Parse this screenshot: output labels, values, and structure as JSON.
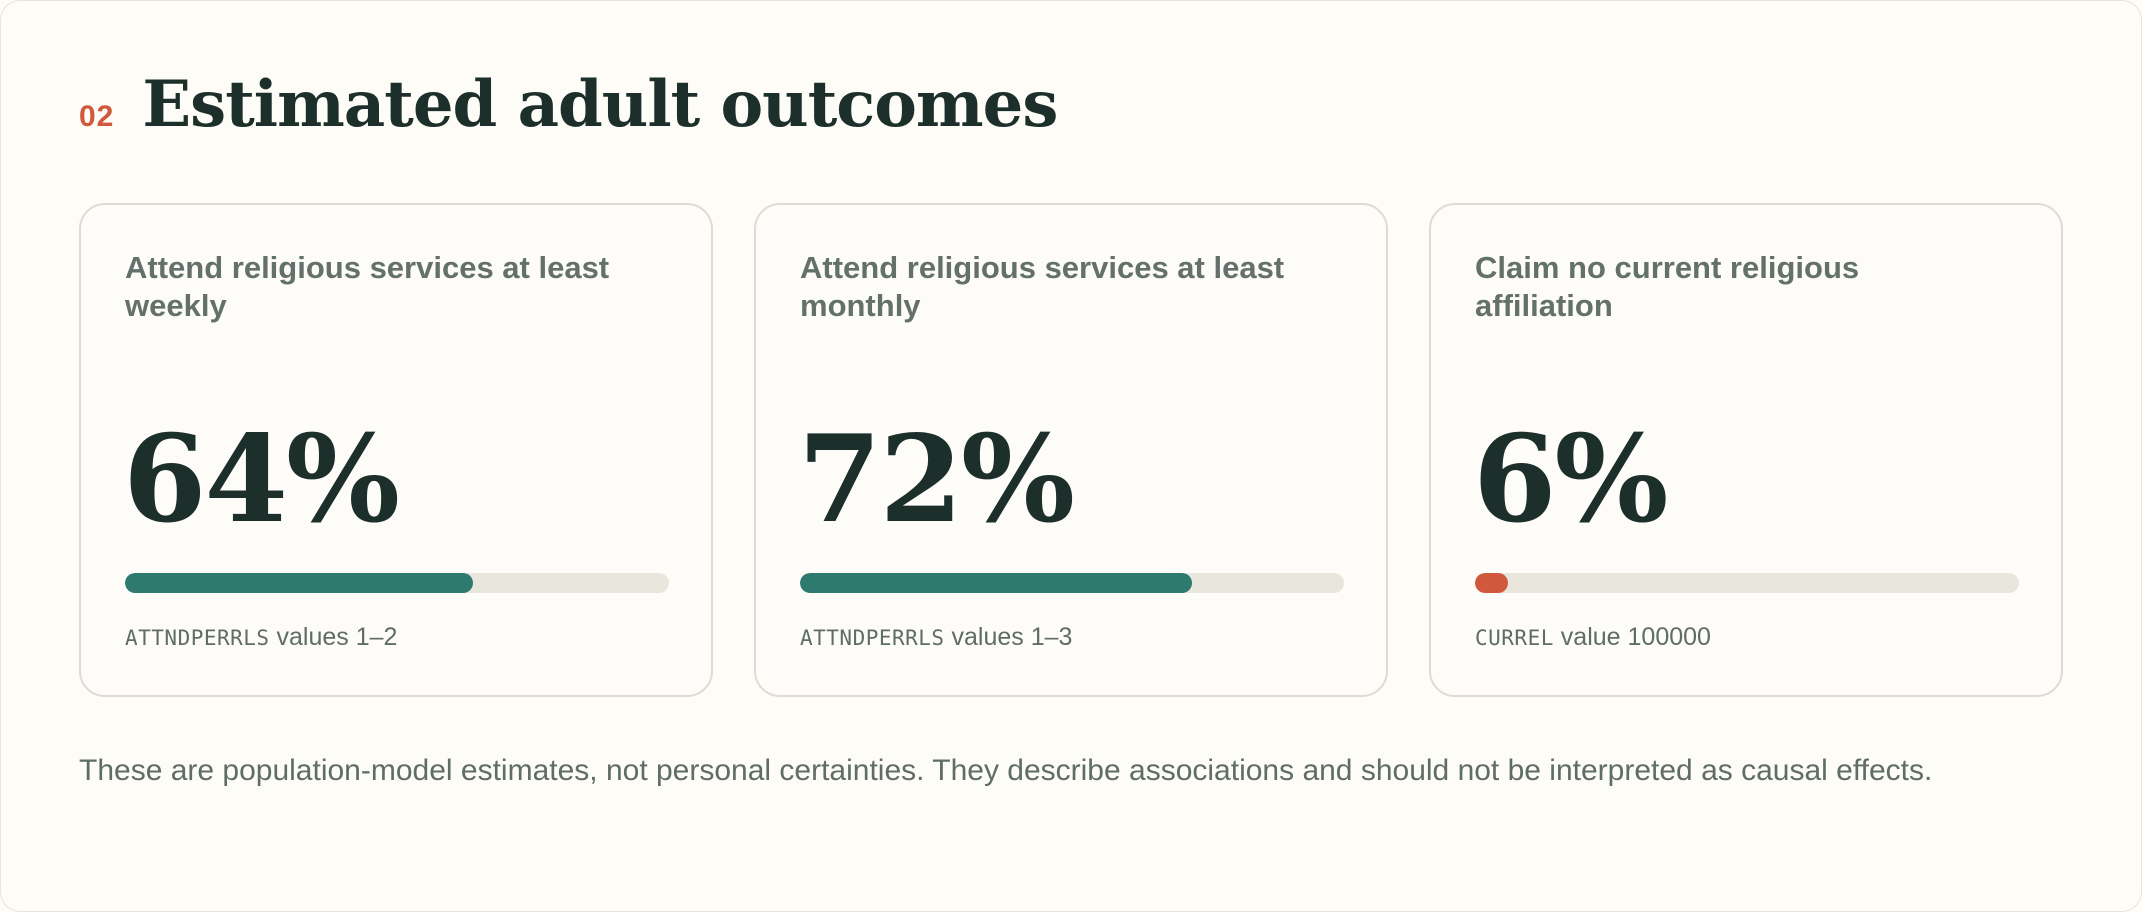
{
  "section": {
    "number": "02",
    "title": "Estimated adult outcomes"
  },
  "cards": [
    {
      "label": "Attend religious services at least weekly",
      "value": "64%",
      "percent": 64,
      "bar_color": "#2e7a6e",
      "note_code": "ATTNDPERRLS",
      "note_text": " values 1–2"
    },
    {
      "label": "Attend religious services at least monthly",
      "value": "72%",
      "percent": 72,
      "bar_color": "#2e7a6e",
      "note_code": "ATTNDPERRLS",
      "note_text": " values 1–3"
    },
    {
      "label": "Claim no current religious affiliation",
      "value": "6%",
      "percent": 6,
      "bar_color": "#d0583c",
      "note_code": "CURREL",
      "note_text": " value 100000"
    }
  ],
  "footnote": "These are population-model estimates, not personal certainties. They describe associations and should not be interpreted as causal effects.",
  "colors": {
    "accent": "#d0583c",
    "bar_positive": "#2e7a6e",
    "bar_track": "#e9e6dd",
    "heading": "#1c2f2b"
  }
}
